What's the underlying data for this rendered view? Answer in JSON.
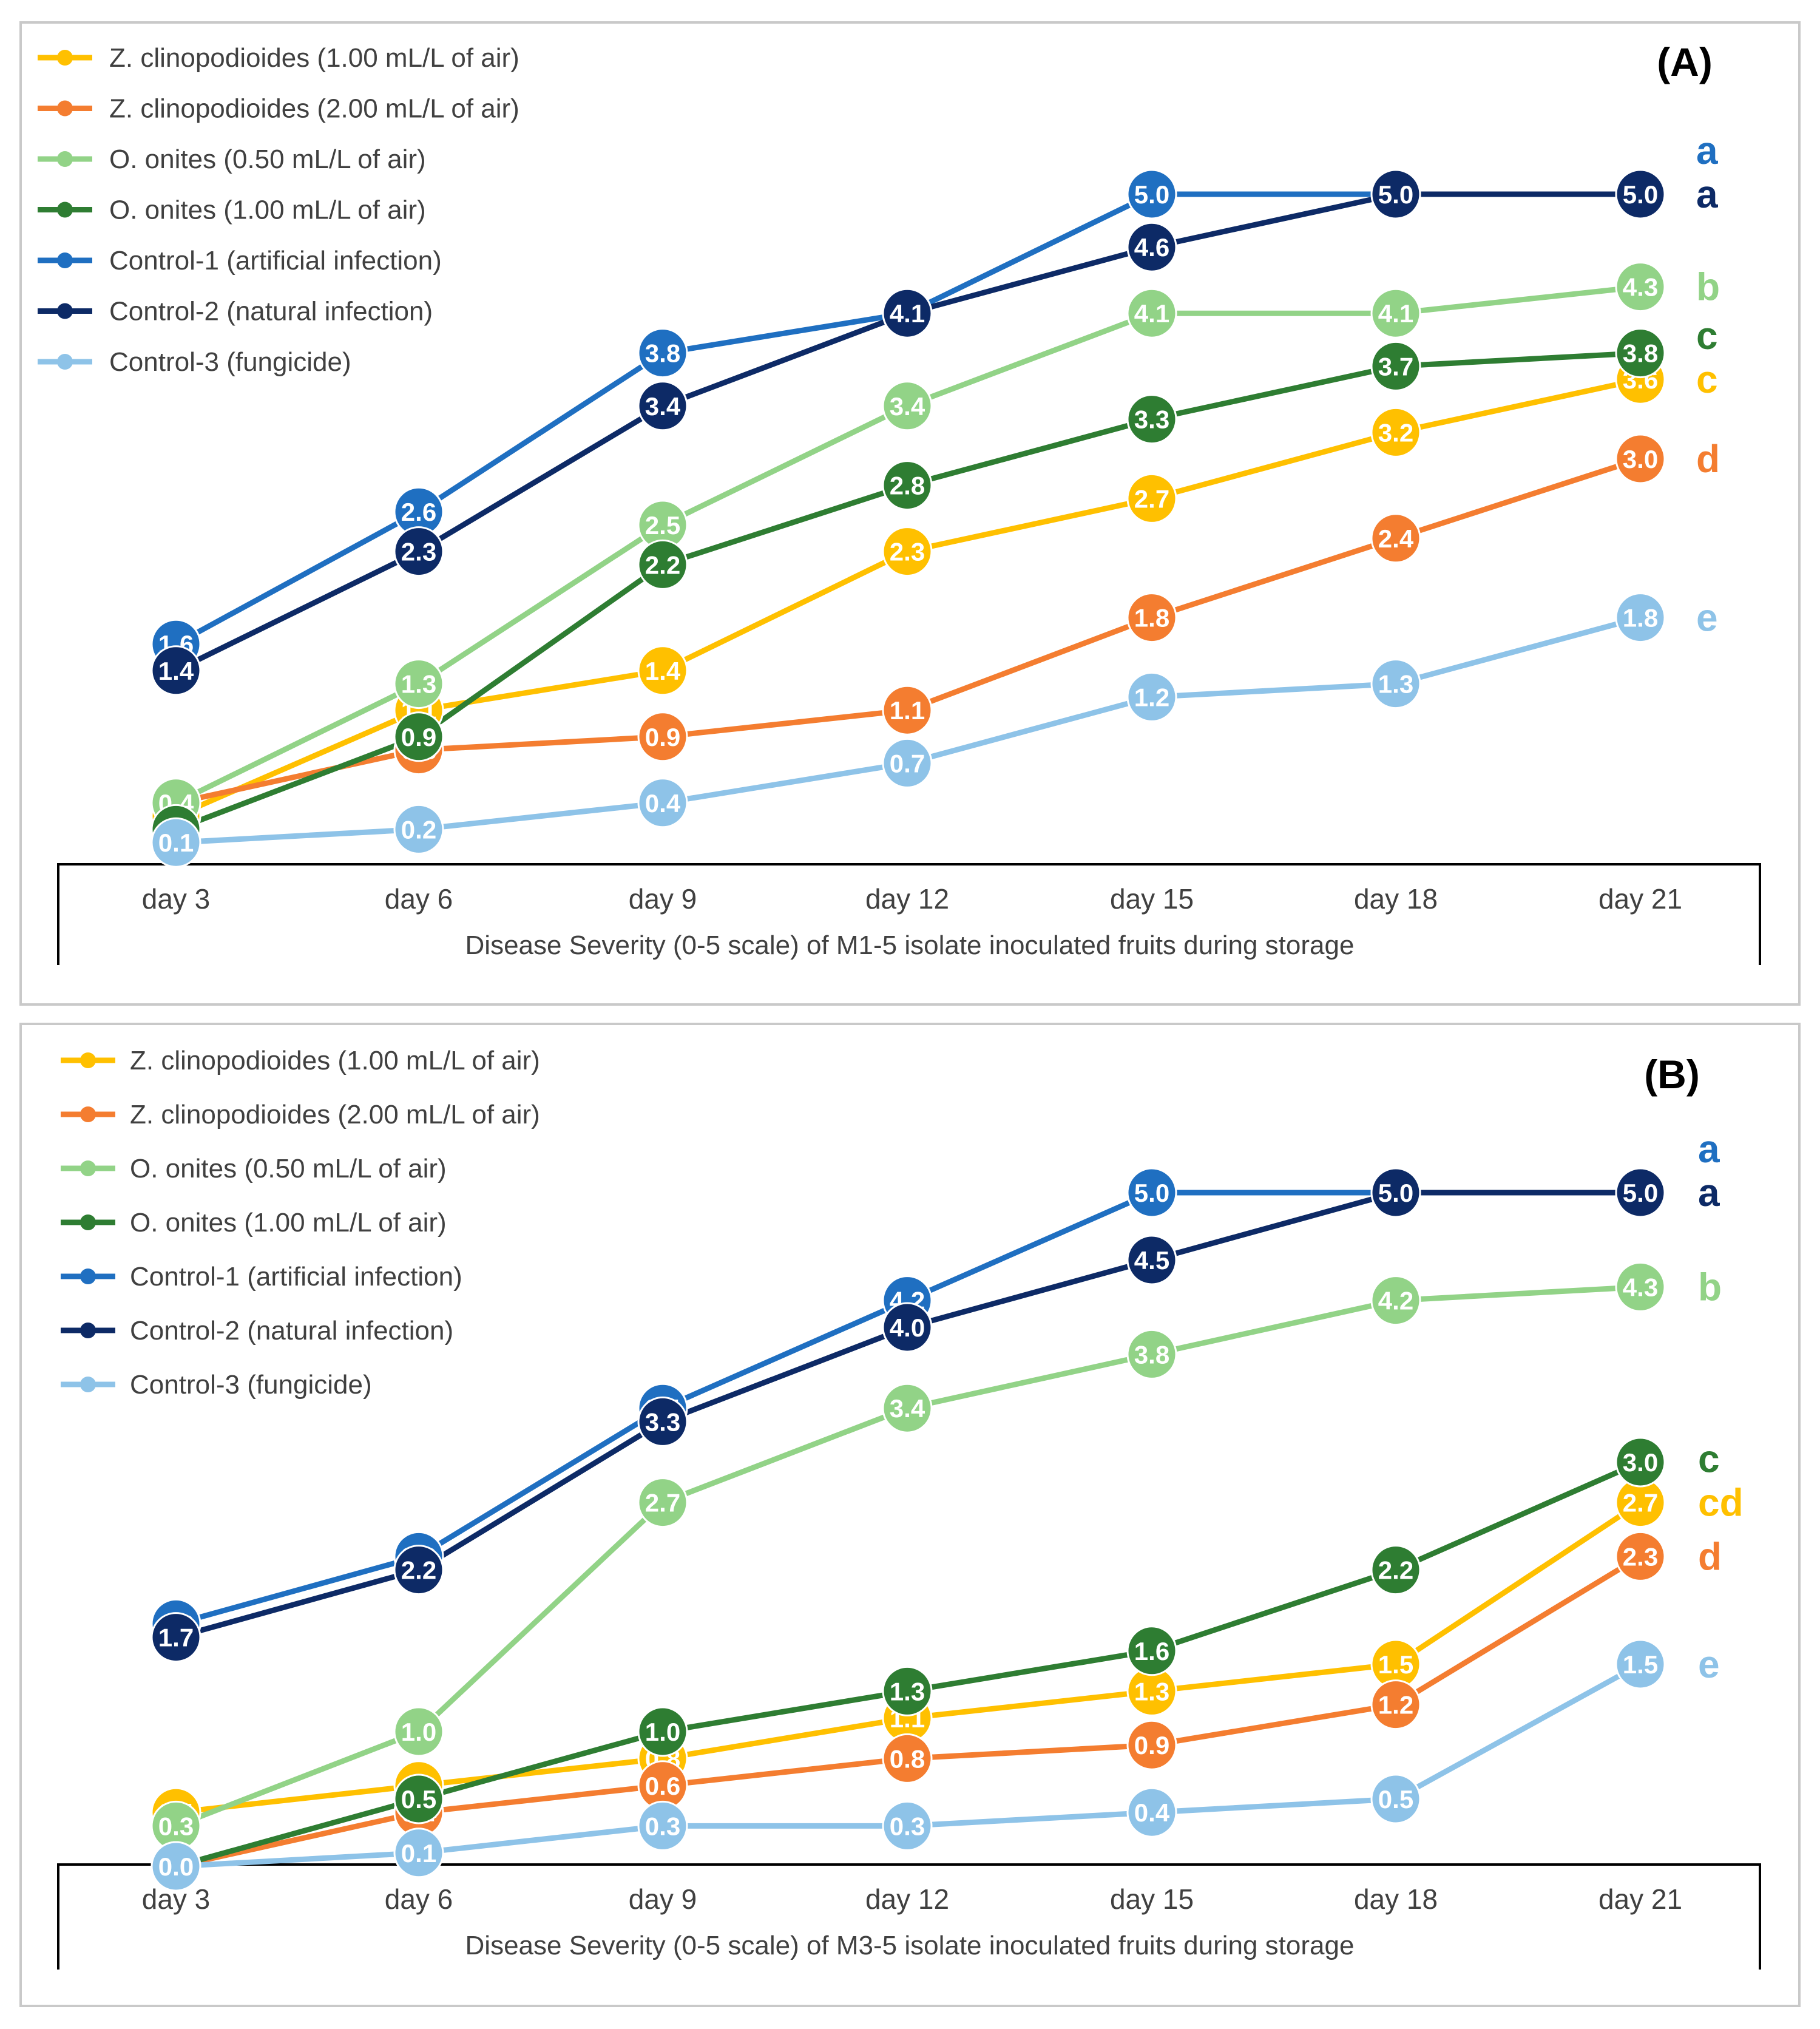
{
  "chart_data": [
    {
      "type": "line",
      "panel_label": "(A)",
      "xlabel": "Disease Severity (0-5 scale) of M1-5 isolate inoculated fruits during storage",
      "ylabel": "",
      "ylim": [
        0,
        5
      ],
      "categories": [
        "day 3",
        "day 6",
        "day 9",
        "day 12",
        "day 15",
        "day 18",
        "day 21"
      ],
      "series": [
        {
          "name": "Z. clinopodioides (1.00 mL/L of air)",
          "color": "#FFC000",
          "values": [
            0.3,
            1.1,
            1.4,
            2.3,
            2.7,
            3.2,
            3.6
          ],
          "letter": "c"
        },
        {
          "name": "Z. clinopodioides (2.00 mL/L of air)",
          "color": "#F47D30",
          "values": [
            0.4,
            0.8,
            0.9,
            1.1,
            1.8,
            2.4,
            3.0
          ],
          "letter": "d"
        },
        {
          "name": "O. onites (0.50 mL/L of air)",
          "color": "#92D387",
          "values": [
            0.4,
            1.3,
            2.5,
            3.4,
            4.1,
            4.1,
            4.3
          ],
          "letter": "b"
        },
        {
          "name": "O. onites (1.00 mL/L of air)",
          "color": "#2E7D32",
          "values": [
            0.2,
            0.9,
            2.2,
            2.8,
            3.3,
            3.7,
            3.8
          ],
          "letter": "c"
        },
        {
          "name": "Control-1 (artificial infection)",
          "color": "#1F6FC1",
          "values": [
            1.6,
            2.6,
            3.8,
            4.1,
            5.0,
            5.0,
            5.0
          ],
          "letter": "a"
        },
        {
          "name": "Control-2 (natural infection)",
          "color": "#0D2A66",
          "values": [
            1.4,
            2.3,
            3.4,
            4.1,
            4.6,
            5.0,
            5.0
          ],
          "letter": "a"
        },
        {
          "name": "Control-3 (fungicide)",
          "color": "#8EC3E8",
          "values": [
            0.1,
            0.2,
            0.4,
            0.7,
            1.2,
            1.3,
            1.8
          ],
          "letter": "e"
        }
      ]
    },
    {
      "type": "line",
      "panel_label": "(B)",
      "xlabel": "Disease Severity (0-5 scale) of M3-5 isolate inoculated fruits during storage",
      "ylabel": "",
      "ylim": [
        0,
        5
      ],
      "categories": [
        "day 3",
        "day 6",
        "day 9",
        "day 12",
        "day 15",
        "day 18",
        "day 21"
      ],
      "series": [
        {
          "name": "Z. clinopodioides (1.00 mL/L of air)",
          "color": "#FFC000",
          "values": [
            0.4,
            0.6,
            0.8,
            1.1,
            1.3,
            1.5,
            2.7
          ],
          "letter": "cd"
        },
        {
          "name": "Z. clinopodioides (2.00 mL/L of air)",
          "color": "#F47D30",
          "values": [
            0.0,
            0.4,
            0.6,
            0.8,
            0.9,
            1.2,
            2.3
          ],
          "letter": "d"
        },
        {
          "name": "O. onites (0.50 mL/L of air)",
          "color": "#92D387",
          "values": [
            0.3,
            1.0,
            2.7,
            3.4,
            3.8,
            4.2,
            4.3
          ],
          "letter": "b"
        },
        {
          "name": "O. onites (1.00 mL/L of air)",
          "color": "#2E7D32",
          "values": [
            0.0,
            0.5,
            1.0,
            1.3,
            1.6,
            2.2,
            3.0
          ],
          "letter": "c"
        },
        {
          "name": "Control-1 (artificial infection)",
          "color": "#1F6FC1",
          "values": [
            1.8,
            2.3,
            3.4,
            4.2,
            5.0,
            5.0,
            5.0
          ],
          "letter": "a"
        },
        {
          "name": "Control-2 (natural infection)",
          "color": "#0D2A66",
          "values": [
            1.7,
            2.2,
            3.3,
            4.0,
            4.5,
            5.0,
            5.0
          ],
          "letter": "a"
        },
        {
          "name": "Control-3 (fungicide)",
          "color": "#8EC3E8",
          "values": [
            0.0,
            0.1,
            0.3,
            0.3,
            0.4,
            0.5,
            1.5
          ],
          "letter": "e"
        }
      ]
    }
  ]
}
